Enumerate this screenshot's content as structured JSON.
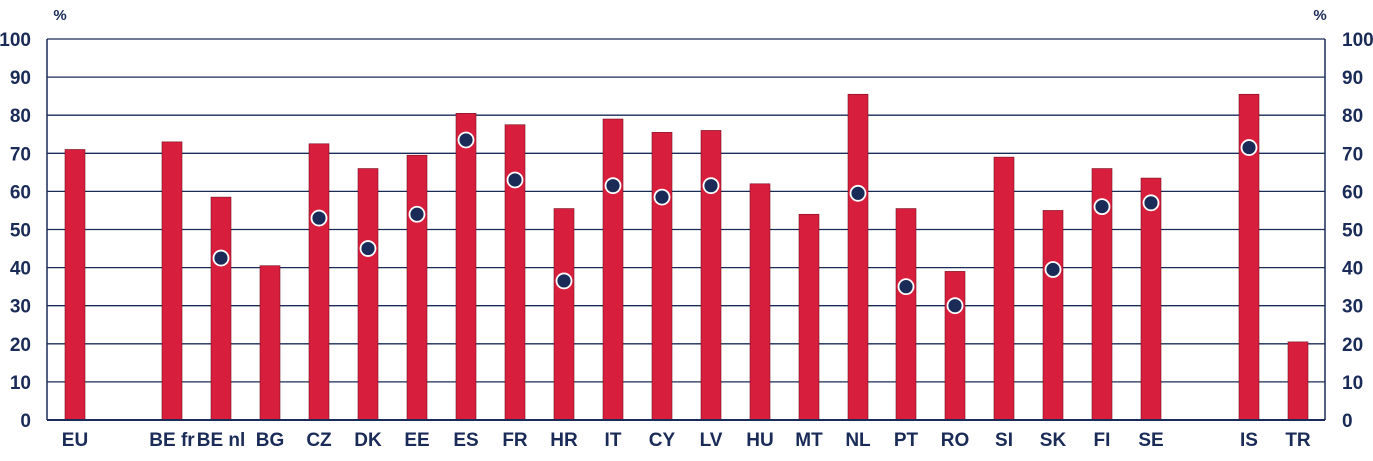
{
  "chart_data": {
    "type": "bar",
    "y_unit_left": "%",
    "y_unit_right": "%",
    "ylim": [
      0,
      100
    ],
    "y_ticks": [
      "0",
      "10",
      "20",
      "30",
      "40",
      "50",
      "60",
      "70",
      "80",
      "90",
      "100"
    ],
    "grid": true,
    "legend": "none",
    "categories": [
      "EU",
      "BE fr",
      "BE nl",
      "BG",
      "CZ",
      "DK",
      "EE",
      "ES",
      "FR",
      "HR",
      "IT",
      "CY",
      "LV",
      "HU",
      "MT",
      "NL",
      "PT",
      "RO",
      "SI",
      "SK",
      "FI",
      "SE",
      "IS",
      "TR"
    ],
    "series": [
      {
        "type": "bar",
        "color": "#d81e3d",
        "values": [
          71,
          73,
          58.5,
          40.5,
          72.5,
          66,
          69.5,
          80.5,
          77.5,
          55.5,
          79,
          75.5,
          76,
          62,
          54,
          85.5,
          55.5,
          39,
          69,
          55,
          66,
          63.5,
          85.5,
          20.5
        ]
      },
      {
        "type": "scatter",
        "color": "#1a2b57",
        "values": [
          null,
          null,
          42.5,
          null,
          53,
          45,
          54,
          73.5,
          63,
          36.5,
          61.5,
          58.5,
          61.5,
          null,
          null,
          59.5,
          35,
          30,
          null,
          39.5,
          56,
          57,
          71.5,
          null
        ]
      }
    ]
  }
}
